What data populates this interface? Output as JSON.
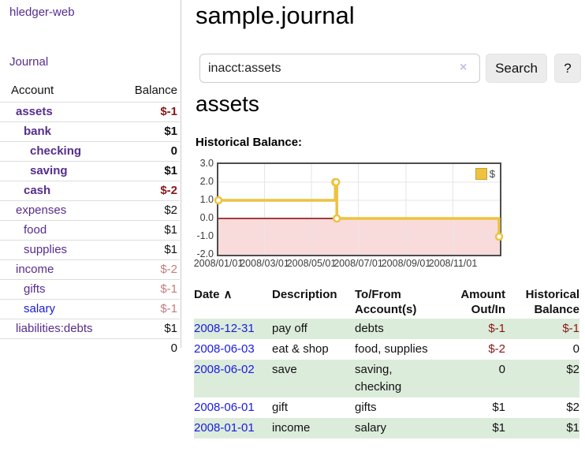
{
  "colors": {
    "purple": "#562d8c",
    "blue": "#1a1ade",
    "neg_strong": "#8b1616",
    "neg_soft": "#c47c7c",
    "row_green": "#dcecdb",
    "gold": "#edc240",
    "pink": "#fadbdb",
    "zero_line": "#8b0000",
    "border_dark": "#4d4d4d",
    "grid": "#e6e6e6",
    "btn_bg": "#ececec",
    "clear_icon": "#cbbfdd"
  },
  "app": {
    "title": "hledger-web"
  },
  "sidebar": {
    "journal_link": "Journal",
    "table": {
      "header_account": "Account",
      "header_balance": "Balance",
      "rows": [
        {
          "name": "assets",
          "balance": "$-1",
          "depth": 1,
          "bold": true,
          "link": "visited",
          "tone": "neg-strong"
        },
        {
          "name": "bank",
          "balance": "$1",
          "depth": 2,
          "bold": true,
          "link": "visited",
          "tone": "plain"
        },
        {
          "name": "checking",
          "balance": "0",
          "depth": 3,
          "bold": true,
          "link": "visited",
          "tone": "plain"
        },
        {
          "name": "saving",
          "balance": "$1",
          "depth": 3,
          "bold": true,
          "link": "visited",
          "tone": "plain"
        },
        {
          "name": "cash",
          "balance": "$-2",
          "depth": 2,
          "bold": true,
          "link": "visited",
          "tone": "neg-strong"
        },
        {
          "name": "expenses",
          "balance": "$2",
          "depth": 1,
          "bold": false,
          "link": "visited",
          "tone": "plain"
        },
        {
          "name": "food",
          "balance": "$1",
          "depth": 2,
          "bold": false,
          "link": "visited",
          "tone": "plain"
        },
        {
          "name": "supplies",
          "balance": "$1",
          "depth": 2,
          "bold": false,
          "link": "visited",
          "tone": "plain"
        },
        {
          "name": "income",
          "balance": "$-2",
          "depth": 1,
          "bold": false,
          "link": "visited",
          "tone": "neg-soft"
        },
        {
          "name": "gifts",
          "balance": "$-1",
          "depth": 2,
          "bold": false,
          "link": "visited",
          "tone": "neg-soft"
        },
        {
          "name": "salary",
          "balance": "$-1",
          "depth": 2,
          "bold": false,
          "link": "unvisited",
          "tone": "neg-soft"
        },
        {
          "name": "liabilities:debts",
          "balance": "$1",
          "depth": 1,
          "bold": false,
          "link": "visited",
          "tone": "plain"
        }
      ],
      "total": "0"
    }
  },
  "main": {
    "title": "sample.journal",
    "search": {
      "value": "inacct:assets",
      "clear": "×",
      "button": "Search",
      "help": "?"
    },
    "account_heading": "assets",
    "chart_label": "Historical Balance:"
  },
  "chart_data": {
    "type": "line",
    "title": "Historical Balance of assets",
    "series": [
      {
        "name": "$",
        "color": "#edc240",
        "steps": true,
        "points": [
          [
            "2008-01-01",
            1
          ],
          [
            "2008-06-01",
            2
          ],
          [
            "2008-06-02",
            2
          ],
          [
            "2008-06-03",
            0
          ],
          [
            "2008-12-31",
            -1
          ]
        ]
      }
    ],
    "xlim": [
      "2008-01-01",
      "2009-01-01"
    ],
    "ylim": [
      -2,
      3
    ],
    "y_ticks": [
      {
        "label": "3.0",
        "value": 3
      },
      {
        "label": "2.0",
        "value": 2
      },
      {
        "label": "1.0",
        "value": 1
      },
      {
        "label": "0.0",
        "value": 0
      },
      {
        "label": "-1.0",
        "value": -1
      },
      {
        "label": "-2.0",
        "value": -2
      }
    ],
    "x_ticks": [
      {
        "label": "2008/01/01",
        "date": "2008-01-01"
      },
      {
        "label": "2008/03/01",
        "date": "2008-03-01"
      },
      {
        "label": "2008/05/01",
        "date": "2008-05-01"
      },
      {
        "label": "2008/07/01",
        "date": "2008-07-01"
      },
      {
        "label": "2008/09/01",
        "date": "2008-09-01"
      },
      {
        "label": "2008/11/01",
        "date": "2008-11-01"
      }
    ],
    "grid": true,
    "legend": {
      "label": "$",
      "position": "top-right"
    },
    "negative_region_color": "#fadbdb",
    "zero_line_color": "#8b0000"
  },
  "register": {
    "headers": {
      "date": "Date",
      "sort_indicator": "∧",
      "description": "Description",
      "accounts": "To/From Account(s)",
      "amount": "Amount Out/In",
      "balance": "Historical Balance"
    },
    "rows": [
      {
        "date": "2008-12-31",
        "description": "pay off",
        "accounts": "debts",
        "amount": "$-1",
        "balance": "$-1"
      },
      {
        "date": "2008-06-03",
        "description": "eat & shop",
        "accounts": "food, supplies",
        "amount": "$-2",
        "balance": "0"
      },
      {
        "date": "2008-06-02",
        "description": "save",
        "accounts": "saving, checking",
        "amount": "0",
        "balance": "$2"
      },
      {
        "date": "2008-06-01",
        "description": "gift",
        "accounts": "gifts",
        "amount": "$1",
        "balance": "$2"
      },
      {
        "date": "2008-01-01",
        "description": "income",
        "accounts": "salary",
        "amount": "$1",
        "balance": "$1"
      }
    ]
  }
}
